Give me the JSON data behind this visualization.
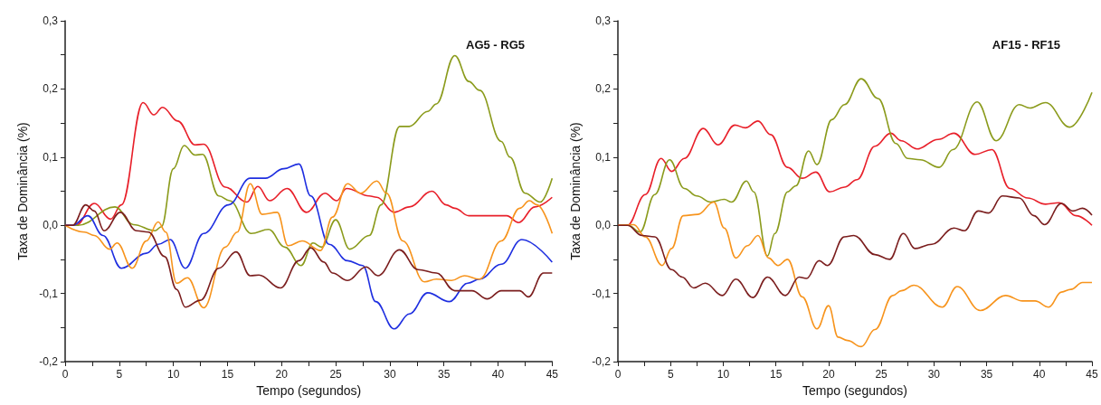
{
  "chart_data": [
    {
      "type": "line",
      "title": "AG5 - RG5",
      "ylabel": "Taxa de Dominância (%)",
      "xlabel": "Tempo (segundos)",
      "xlim": [
        0,
        45
      ],
      "ylim": [
        -0.2,
        0.3
      ],
      "xticks": [
        0,
        {
          "value": 2.5,
          "label": null
        },
        5,
        {
          "value": 7.5,
          "label": null
        },
        10,
        {
          "value": 12.5,
          "label": null
        },
        15,
        {
          "value": 17.5,
          "label": null
        },
        20,
        {
          "value": 22.5,
          "label": null
        },
        25,
        {
          "value": 27.5,
          "label": null
        },
        30,
        {
          "value": 32.5,
          "label": null
        },
        35,
        {
          "value": 37.5,
          "label": null
        },
        40,
        {
          "value": 42.5,
          "label": null
        },
        45
      ],
      "yticks": [
        {
          "value": -0.2,
          "label": "-0,2"
        },
        {
          "value": -0.15,
          "label": null
        },
        {
          "value": -0.1,
          "label": "-0,1"
        },
        {
          "value": -0.05,
          "label": null
        },
        {
          "value": 0,
          "label": "0,0"
        },
        {
          "value": 0.05,
          "label": null
        },
        {
          "value": 0.1,
          "label": "0,1"
        },
        {
          "value": 0.15,
          "label": null
        },
        {
          "value": 0.2,
          "label": "0,2"
        },
        {
          "value": 0.25,
          "label": null
        },
        {
          "value": 0.3,
          "label": "0,3"
        }
      ],
      "grid": false,
      "marker": "none",
      "line_style": "solid",
      "series": [
        {
          "color": "#e8202a",
          "x": [
            0,
            1,
            2.7,
            4.2,
            5.2,
            7.2,
            8.2,
            9.0,
            10.4,
            12.0,
            12.8,
            14.8,
            16.8,
            17.8,
            18.9,
            20.5,
            22.3,
            24.0,
            25.1,
            26.0,
            28.1,
            28.8,
            30.4,
            31.8,
            33.9,
            35.2,
            36.0,
            37.3,
            40.8,
            41.9,
            43.4,
            45
          ],
          "values": [
            0,
            0,
            0.032,
            0.009,
            0.03,
            0.18,
            0.162,
            0.173,
            0.153,
            0.118,
            0.119,
            0.056,
            0.034,
            0.057,
            0.036,
            0.054,
            0.019,
            0.047,
            0.036,
            0.054,
            0.043,
            0.041,
            0.019,
            0.027,
            0.05,
            0.03,
            0.025,
            0.014,
            0.014,
            0.004,
            0.027,
            0.041
          ]
        },
        {
          "color": "#8b9b1c",
          "x": [
            0,
            1.2,
            4.6,
            6.3,
            8.3,
            8.9,
            10.0,
            11.0,
            12.0,
            12.7,
            14.2,
            15.2,
            17.2,
            18.8,
            20.3,
            21.8,
            22.9,
            23.7,
            25.0,
            26.3,
            28.1,
            29.2,
            30.9,
            31.8,
            33.5,
            34.3,
            36.0,
            37.3,
            38.3,
            40.3,
            41.1,
            42.5,
            43.9,
            45
          ],
          "values": [
            0,
            0,
            0.027,
            0.001,
            -0.008,
            -0.002,
            0.083,
            0.117,
            0.103,
            0.104,
            0.043,
            0.036,
            -0.012,
            -0.006,
            -0.032,
            -0.059,
            -0.026,
            -0.032,
            0.008,
            -0.035,
            -0.015,
            0.03,
            0.145,
            0.145,
            0.167,
            0.178,
            0.249,
            0.211,
            0.198,
            0.123,
            0.1,
            0.047,
            0.034,
            0.069
          ]
        },
        {
          "color": "#1f2fe0",
          "x": [
            0,
            0.7,
            2.1,
            3.5,
            5.2,
            7.5,
            8.6,
            9.7,
            11.1,
            12.8,
            15.1,
            17.1,
            18.5,
            20.2,
            21.6,
            22.7,
            24.4,
            26.1,
            27.5,
            28.7,
            30.4,
            31.8,
            33.5,
            35.5,
            37.2,
            38.3,
            40.3,
            42.2,
            45
          ],
          "values": [
            0,
            0,
            0.014,
            -0.015,
            -0.063,
            -0.041,
            -0.028,
            -0.021,
            -0.063,
            -0.012,
            0.03,
            0.069,
            0.069,
            0.083,
            0.09,
            0.043,
            -0.028,
            -0.052,
            -0.059,
            -0.112,
            -0.152,
            -0.13,
            -0.099,
            -0.112,
            -0.085,
            -0.079,
            -0.057,
            -0.021,
            -0.054
          ]
        },
        {
          "color": "#f7941d",
          "x": [
            0,
            1.8,
            2.7,
            4.1,
            4.8,
            6.2,
            7.5,
            8.6,
            9.3,
            10.3,
            11.3,
            12.8,
            14.8,
            15.9,
            17.1,
            18.2,
            19.6,
            20.6,
            21.9,
            23.6,
            24.7,
            26.1,
            27.3,
            28.8,
            29.7,
            31.2,
            33.2,
            34.3,
            35.7,
            36.9,
            38.3,
            40.3,
            42.0,
            42.9,
            43.6,
            45
          ],
          "values": [
            0,
            -0.01,
            -0.015,
            -0.035,
            -0.026,
            -0.063,
            -0.023,
            0.005,
            -0.01,
            -0.085,
            -0.077,
            -0.121,
            -0.032,
            -0.01,
            0.061,
            0.016,
            0.019,
            -0.03,
            -0.023,
            -0.037,
            0.012,
            0.061,
            0.047,
            0.065,
            0.047,
            -0.023,
            -0.083,
            -0.079,
            -0.081,
            -0.074,
            -0.079,
            -0.023,
            0.025,
            0.036,
            0.03,
            -0.012
          ]
        },
        {
          "color": "#7b1e1e",
          "x": [
            0,
            0.7,
            1.9,
            2.7,
            3.6,
            5.1,
            6.6,
            7.7,
            9.2,
            10.3,
            11.1,
            12.5,
            14.2,
            15.8,
            17.1,
            17.9,
            19.9,
            21.6,
            22.7,
            23.9,
            24.7,
            26.1,
            27.8,
            28.9,
            30.9,
            32.6,
            34.3,
            36.0,
            37.6,
            39.0,
            40.3,
            42.0,
            42.8,
            44.2,
            45
          ],
          "values": [
            0,
            0,
            0.03,
            0.021,
            -0.008,
            0.019,
            -0.008,
            -0.01,
            -0.046,
            -0.094,
            -0.12,
            -0.11,
            -0.063,
            -0.039,
            -0.074,
            -0.073,
            -0.092,
            -0.052,
            -0.033,
            -0.054,
            -0.07,
            -0.081,
            -0.061,
            -0.074,
            -0.036,
            -0.065,
            -0.07,
            -0.096,
            -0.096,
            -0.108,
            -0.096,
            -0.096,
            -0.105,
            -0.07,
            -0.07
          ]
        }
      ]
    },
    {
      "type": "line",
      "title": "AF15 - RF15",
      "xlabel": "Tempo (segundos)",
      "ylabel": "Taxa de Dominância (%)",
      "xlim": [
        0,
        45
      ],
      "ylim": [
        -0.2,
        0.3
      ],
      "xticks": [
        0,
        {
          "value": 2.5,
          "label": null
        },
        5,
        {
          "value": 7.5,
          "label": null
        },
        10,
        {
          "value": 12.5,
          "label": null
        },
        15,
        {
          "value": 17.5,
          "label": null
        },
        20,
        {
          "value": 22.5,
          "label": null
        },
        25,
        {
          "value": 27.5,
          "label": null
        },
        30,
        {
          "value": 32.5,
          "label": null
        },
        35,
        {
          "value": 37.5,
          "label": null
        },
        40,
        {
          "value": 42.5,
          "label": null
        },
        45
      ],
      "yticks": [
        {
          "value": -0.2,
          "label": "-0,2"
        },
        {
          "value": -0.15,
          "label": null
        },
        {
          "value": -0.1,
          "label": "-0,1"
        },
        {
          "value": -0.05,
          "label": null
        },
        {
          "value": 0,
          "label": "0,0"
        },
        {
          "value": 0.05,
          "label": null
        },
        {
          "value": 0.1,
          "label": "0,1"
        },
        {
          "value": 0.15,
          "label": null
        },
        {
          "value": 0.2,
          "label": "0,2"
        },
        {
          "value": 0.25,
          "label": null
        },
        {
          "value": 0.3,
          "label": "0,3"
        }
      ],
      "grid": false,
      "marker": "none",
      "line_style": "solid",
      "series": [
        {
          "color": "#e8202a",
          "x": [
            0,
            0.9,
            2.6,
            4.1,
            5.1,
            6.3,
            8.1,
            9.5,
            11.1,
            12.1,
            13.3,
            14.5,
            16.1,
            17.5,
            18.8,
            20.1,
            21.5,
            22.7,
            24.4,
            25.9,
            26.9,
            28.4,
            30.4,
            31.9,
            33.9,
            35.5,
            37.2,
            38.9,
            40.6,
            41.9,
            43.5,
            45
          ],
          "values": [
            0,
            0,
            0.045,
            0.098,
            0.079,
            0.098,
            0.142,
            0.118,
            0.147,
            0.143,
            0.153,
            0.133,
            0.085,
            0.069,
            0.078,
            0.049,
            0.056,
            0.067,
            0.116,
            0.135,
            0.124,
            0.112,
            0.126,
            0.135,
            0.104,
            0.111,
            0.054,
            0.04,
            0.031,
            0.033,
            0.014,
            0
          ]
        },
        {
          "color": "#8b9b1c",
          "x": [
            0,
            1.0,
            2.1,
            3.5,
            4.9,
            6.3,
            7.5,
            8.8,
            10.1,
            10.8,
            12.2,
            12.9,
            14.2,
            14.9,
            16.1,
            16.9,
            18.1,
            18.9,
            20.3,
            21.5,
            23.1,
            24.7,
            26.4,
            27.5,
            28.7,
            30.5,
            31.8,
            34.1,
            35.9,
            38.1,
            39.1,
            40.6,
            42.9,
            45
          ],
          "values": [
            0,
            0,
            -0.01,
            0.045,
            0.096,
            0.054,
            0.043,
            0.034,
            0.038,
            0.034,
            0.065,
            0.049,
            -0.045,
            -0.012,
            0.049,
            0.058,
            0.109,
            0.089,
            0.155,
            0.177,
            0.215,
            0.186,
            0.12,
            0.098,
            0.096,
            0.085,
            0.111,
            0.181,
            0.124,
            0.177,
            0.172,
            0.18,
            0.144,
            0.195
          ]
        },
        {
          "color": "#f7941d",
          "x": [
            0,
            1.5,
            2.6,
            4.2,
            5.1,
            6.2,
            7.6,
            9.1,
            10.1,
            11.2,
            12.3,
            13.3,
            14.3,
            15.2,
            16.1,
            17.5,
            18.9,
            20.0,
            20.9,
            21.8,
            23.1,
            24.4,
            26.1,
            26.9,
            28.1,
            30.8,
            32.2,
            34.4,
            36.8,
            38.4,
            39.6,
            40.9,
            42.1,
            43.0,
            44.1,
            45
          ],
          "values": [
            0,
            0.001,
            -0.017,
            -0.059,
            -0.034,
            0.014,
            0.016,
            0.034,
            -0.004,
            -0.048,
            -0.03,
            -0.015,
            -0.048,
            -0.059,
            -0.05,
            -0.105,
            -0.152,
            -0.118,
            -0.164,
            -0.169,
            -0.178,
            -0.153,
            -0.103,
            -0.096,
            -0.088,
            -0.12,
            -0.09,
            -0.125,
            -0.103,
            -0.111,
            -0.111,
            -0.12,
            -0.098,
            -0.094,
            -0.084,
            -0.084
          ]
        },
        {
          "color": "#7b1e1e",
          "x": [
            0,
            0.9,
            2.3,
            3.5,
            5.1,
            6.1,
            7.2,
            8.3,
            9.9,
            11.2,
            12.8,
            14.2,
            15.9,
            17.2,
            17.9,
            19.1,
            19.9,
            21.5,
            22.4,
            24.4,
            25.8,
            27.1,
            28.2,
            29.8,
            31.9,
            32.9,
            34.2,
            35.2,
            36.5,
            38.1,
            39.5,
            40.5,
            42.1,
            43.2,
            44.1,
            45
          ],
          "values": [
            0,
            0,
            -0.015,
            -0.017,
            -0.065,
            -0.076,
            -0.092,
            -0.085,
            -0.103,
            -0.079,
            -0.106,
            -0.076,
            -0.103,
            -0.076,
            -0.078,
            -0.052,
            -0.059,
            -0.017,
            -0.015,
            -0.043,
            -0.05,
            -0.012,
            -0.034,
            -0.028,
            -0.004,
            -0.008,
            0.021,
            0.018,
            0.043,
            0.04,
            0.014,
            0.001,
            0.032,
            0.021,
            0.025,
            0.015
          ]
        }
      ]
    }
  ]
}
